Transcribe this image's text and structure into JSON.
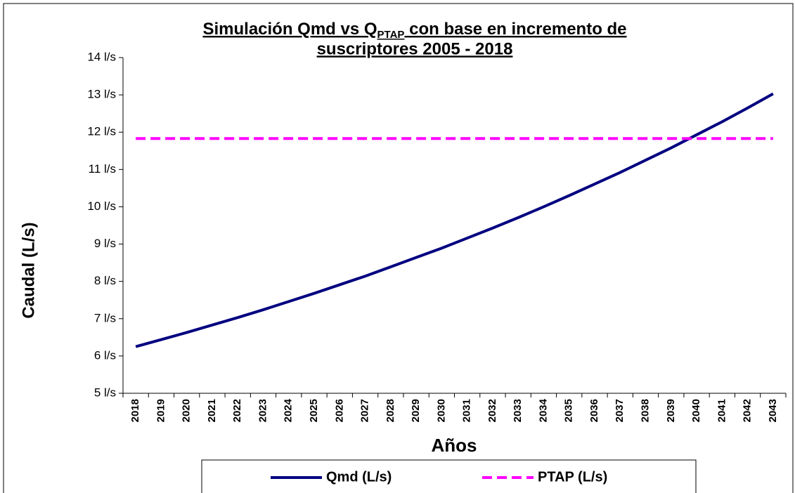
{
  "chart_data": {
    "type": "line",
    "title_parts": [
      "Simulación Qmd vs Q",
      "PTAP",
      " con base en incremento de",
      "suscriptores 2005 - 2018"
    ],
    "x_label": "Años",
    "y_label": "Caudal (L/s)",
    "categories": [
      "2018",
      "2019",
      "2020",
      "2021",
      "2022",
      "2023",
      "2024",
      "2025",
      "2026",
      "2027",
      "2028",
      "2029",
      "2030",
      "2031",
      "2032",
      "2033",
      "2034",
      "2035",
      "2036",
      "2037",
      "2038",
      "2039",
      "2040",
      "2041",
      "2042",
      "2043"
    ],
    "series": [
      {
        "name": "Qmd (L/s)",
        "color": "#000080",
        "dash": false,
        "values": [
          6.25,
          6.44,
          6.63,
          6.83,
          7.03,
          7.24,
          7.46,
          7.68,
          7.91,
          8.14,
          8.39,
          8.64,
          8.89,
          9.16,
          9.43,
          9.71,
          10.0,
          10.3,
          10.61,
          10.92,
          11.25,
          11.58,
          11.93,
          12.28,
          12.65,
          13.03
        ]
      },
      {
        "name": "PTAP (L/s)",
        "color": "#ff00ff",
        "dash": true,
        "values": [
          11.83,
          11.83,
          11.83,
          11.83,
          11.83,
          11.83,
          11.83,
          11.83,
          11.83,
          11.83,
          11.83,
          11.83,
          11.83,
          11.83,
          11.83,
          11.83,
          11.83,
          11.83,
          11.83,
          11.83,
          11.83,
          11.83,
          11.83,
          11.83,
          11.83,
          11.83
        ]
      }
    ],
    "ylim": [
      5,
      14
    ],
    "yticks": [
      {
        "value": 5,
        "label": "5 l/s"
      },
      {
        "value": 6,
        "label": "6 l/s"
      },
      {
        "value": 7,
        "label": "7 l/s"
      },
      {
        "value": 8,
        "label": "8 l/s"
      },
      {
        "value": 9,
        "label": "9 l/s"
      },
      {
        "value": 10,
        "label": "10 l/s"
      },
      {
        "value": 11,
        "label": "11 l/s"
      },
      {
        "value": 12,
        "label": "12 l/s"
      },
      {
        "value": 13,
        "label": "13 l/s"
      },
      {
        "value": 14,
        "label": "14 l/s"
      }
    ],
    "legend": "bottom"
  }
}
